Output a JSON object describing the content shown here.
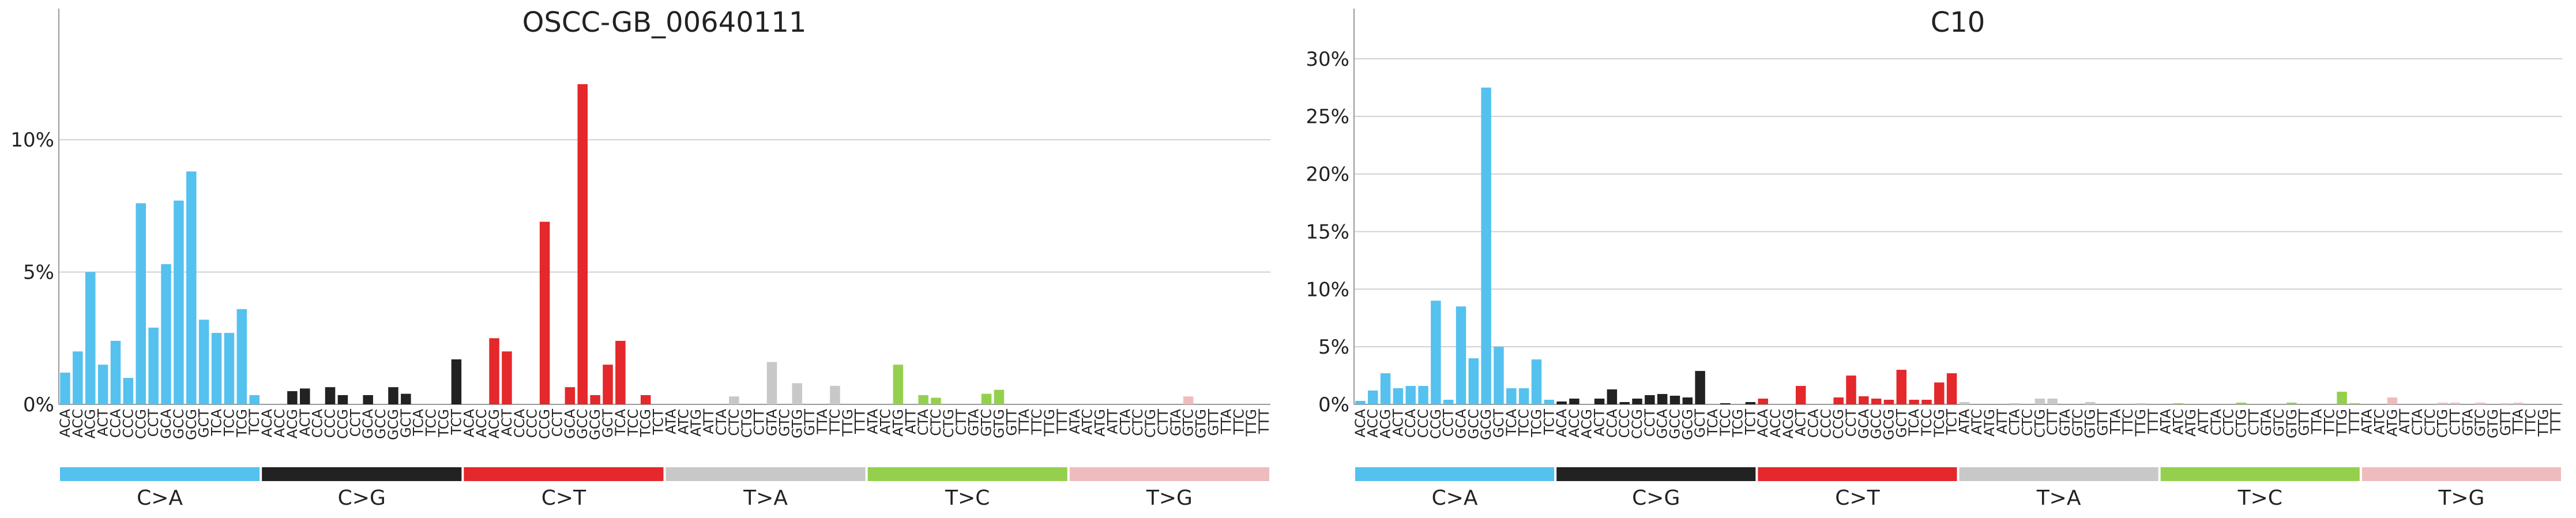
{
  "mutation_types": [
    "C>A",
    "C>G",
    "C>T",
    "T>A",
    "T>C",
    "T>G"
  ],
  "colors": {
    "C>A": "#55C1EE",
    "C>G": "#222222",
    "C>T": "#E4282B",
    "T>A": "#C8C8C8",
    "T>C": "#94D04E",
    "T>G": "#EFBCBE"
  },
  "chart_data": [
    {
      "type": "bar",
      "title": "OSCC-GB_00640111",
      "yticks": [
        "0%",
        "5%",
        "10%"
      ],
      "ylim": [
        0,
        14.8
      ],
      "grid": true,
      "categories": [
        "A[C>A]A",
        "A[C>A]C",
        "A[C>A]G",
        "A[C>A]T",
        "C[C>A]A",
        "C[C>A]C",
        "C[C>A]G",
        "C[C>A]T",
        "G[C>A]A",
        "G[C>A]C",
        "G[C>A]G",
        "G[C>A]T",
        "T[C>A]A",
        "T[C>A]C",
        "T[C>A]G",
        "T[C>A]T",
        "A[C>G]A",
        "A[C>G]C",
        "A[C>G]G",
        "A[C>G]T",
        "C[C>G]A",
        "C[C>G]C",
        "C[C>G]G",
        "C[C>G]T",
        "G[C>G]A",
        "G[C>G]C",
        "G[C>G]G",
        "G[C>G]T",
        "T[C>G]A",
        "T[C>G]C",
        "T[C>G]G",
        "T[C>G]T",
        "A[C>T]A",
        "A[C>T]C",
        "A[C>T]G",
        "A[C>T]T",
        "C[C>T]A",
        "C[C>T]C",
        "C[C>T]G",
        "C[C>T]T",
        "G[C>T]A",
        "G[C>T]C",
        "G[C>T]G",
        "G[C>T]T",
        "T[C>T]A",
        "T[C>T]C",
        "T[C>T]G",
        "T[C>T]T",
        "A[T>A]A",
        "A[T>A]C",
        "A[T>A]G",
        "A[T>A]T",
        "C[T>A]A",
        "C[T>A]C",
        "C[T>A]G",
        "C[T>A]T",
        "G[T>A]A",
        "G[T>A]C",
        "G[T>A]G",
        "G[T>A]T",
        "T[T>A]A",
        "T[T>A]C",
        "T[T>A]G",
        "T[T>A]T",
        "A[T>C]A",
        "A[T>C]C",
        "A[T>C]G",
        "A[T>C]T",
        "C[T>C]A",
        "C[T>C]C",
        "C[T>C]G",
        "C[T>C]T",
        "G[T>C]A",
        "G[T>C]C",
        "G[T>C]G",
        "G[T>C]T",
        "T[T>C]A",
        "T[T>C]C",
        "T[T>C]G",
        "T[T>C]T",
        "A[T>G]A",
        "A[T>G]C",
        "A[T>G]G",
        "A[T>G]T",
        "C[T>G]A",
        "C[T>G]C",
        "C[T>G]G",
        "C[T>G]T",
        "G[T>G]A",
        "G[T>G]C",
        "G[T>G]G",
        "G[T>G]T",
        "T[T>G]A",
        "T[T>G]C",
        "T[T>G]G",
        "T[T>G]T"
      ],
      "values": [
        1.2,
        2.0,
        5.0,
        1.5,
        2.4,
        1.0,
        7.6,
        2.9,
        5.3,
        7.7,
        8.8,
        3.2,
        2.7,
        2.7,
        3.6,
        0.35,
        0,
        0,
        0.5,
        0.6,
        0,
        0.65,
        0.35,
        0,
        0.35,
        0,
        0.65,
        0.4,
        0,
        0,
        0,
        1.7,
        0,
        0,
        2.5,
        2.0,
        0,
        0,
        6.9,
        0,
        0.65,
        12.1,
        0.35,
        1.5,
        2.4,
        0,
        0.35,
        0,
        0,
        0,
        0,
        0,
        0,
        0.3,
        0,
        0,
        1.6,
        0,
        0.8,
        0,
        0,
        0.7,
        0,
        0,
        0,
        0,
        1.5,
        0,
        0.35,
        0.25,
        0,
        0,
        0,
        0.4,
        0.55,
        0,
        0,
        0,
        0,
        0,
        0,
        0,
        0,
        0,
        0,
        0,
        0,
        0,
        0,
        0.3,
        0,
        0,
        0,
        0,
        0,
        0
      ]
    },
    {
      "type": "bar",
      "title": "C10",
      "yticks": [
        "0%",
        "5%",
        "10%",
        "15%",
        "20%",
        "25%",
        "30%"
      ],
      "ylim": [
        0,
        34.0
      ],
      "grid": true,
      "categories": [
        "A[C>A]A",
        "A[C>A]C",
        "A[C>A]G",
        "A[C>A]T",
        "C[C>A]A",
        "C[C>A]C",
        "C[C>A]G",
        "C[C>A]T",
        "G[C>A]A",
        "G[C>A]C",
        "G[C>A]G",
        "G[C>A]T",
        "T[C>A]A",
        "T[C>A]C",
        "T[C>A]G",
        "T[C>A]T",
        "A[C>G]A",
        "A[C>G]C",
        "A[C>G]G",
        "A[C>G]T",
        "C[C>G]A",
        "C[C>G]C",
        "C[C>G]G",
        "C[C>G]T",
        "G[C>G]A",
        "G[C>G]C",
        "G[C>G]G",
        "G[C>G]T",
        "T[C>G]A",
        "T[C>G]C",
        "T[C>G]G",
        "T[C>G]T",
        "A[C>T]A",
        "A[C>T]C",
        "A[C>T]G",
        "A[C>T]T",
        "C[C>T]A",
        "C[C>T]C",
        "C[C>T]G",
        "C[C>T]T",
        "G[C>T]A",
        "G[C>T]C",
        "G[C>T]G",
        "G[C>T]T",
        "T[C>T]A",
        "T[C>T]C",
        "T[C>T]G",
        "T[C>T]T",
        "A[T>A]A",
        "A[T>A]C",
        "A[T>A]G",
        "A[T>A]T",
        "C[T>A]A",
        "C[T>A]C",
        "C[T>A]G",
        "C[T>A]T",
        "G[T>A]A",
        "G[T>A]C",
        "G[T>A]G",
        "G[T>A]T",
        "T[T>A]A",
        "T[T>A]C",
        "T[T>A]G",
        "T[T>A]T",
        "A[T>C]A",
        "A[T>C]C",
        "A[T>C]G",
        "A[T>C]T",
        "C[T>C]A",
        "C[T>C]C",
        "C[T>C]G",
        "C[T>C]T",
        "G[T>C]A",
        "G[T>C]C",
        "G[T>C]G",
        "G[T>C]T",
        "T[T>C]A",
        "T[T>C]C",
        "T[T>C]G",
        "T[T>C]T",
        "A[T>G]A",
        "A[T>G]C",
        "A[T>G]G",
        "A[T>G]T",
        "C[T>G]A",
        "C[T>G]C",
        "C[T>G]G",
        "C[T>G]T",
        "G[T>G]A",
        "G[T>G]C",
        "G[T>G]G",
        "G[T>G]T",
        "T[T>G]A",
        "T[T>G]C",
        "T[T>G]G",
        "T[T>G]T"
      ],
      "values": [
        0.3,
        1.2,
        2.7,
        1.4,
        1.6,
        1.6,
        9.0,
        0.4,
        8.5,
        4.0,
        27.5,
        5.0,
        1.4,
        1.4,
        3.9,
        0.4,
        0.25,
        0.5,
        0,
        0.5,
        1.3,
        0.2,
        0.5,
        0.8,
        0.9,
        0.75,
        0.6,
        2.9,
        0,
        0.1,
        0,
        0.2,
        0.5,
        0,
        0,
        1.6,
        0,
        0,
        0.6,
        2.5,
        0.7,
        0.5,
        0.4,
        3.0,
        0.4,
        0.4,
        1.9,
        2.7,
        0.2,
        0,
        0,
        0,
        0.1,
        0,
        0.5,
        0.5,
        0,
        0,
        0.2,
        0,
        0,
        0,
        0.1,
        0,
        0,
        0.1,
        0,
        0,
        0,
        0,
        0.15,
        0,
        0,
        0,
        0.15,
        0,
        0,
        0,
        1.1,
        0.1,
        0,
        0,
        0.6,
        0,
        0,
        0,
        0.15,
        0.15,
        0,
        0.15,
        0,
        0.1,
        0.15,
        0,
        0,
        0
      ]
    }
  ]
}
